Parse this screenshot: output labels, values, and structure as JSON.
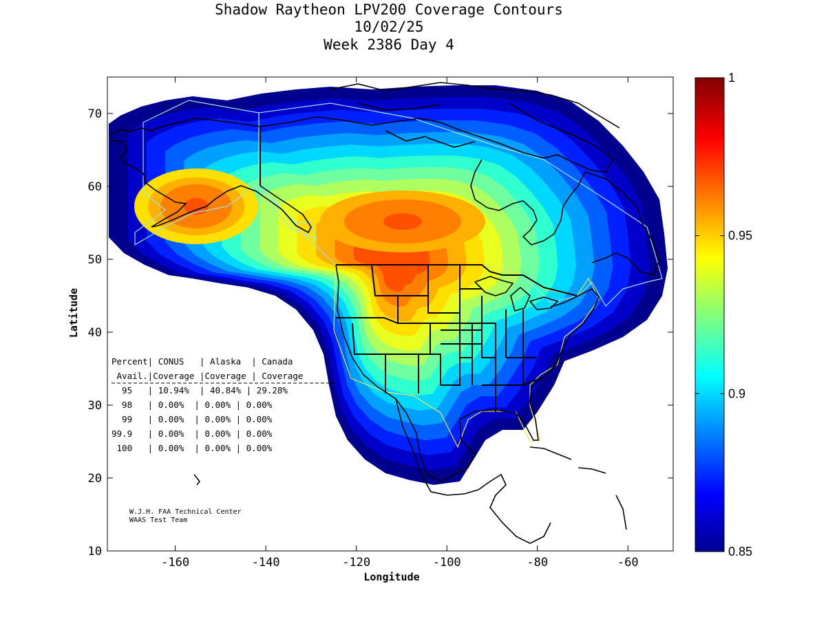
{
  "title": {
    "line1": "Shadow Raytheon LPV200 Coverage Contours",
    "line2": "10/02/25",
    "line3": "Week 2386 Day 4"
  },
  "axes": {
    "xlabel": "Longitude",
    "ylabel": "Latitude",
    "xlim": [
      -175,
      -50
    ],
    "ylim": [
      10,
      75
    ],
    "xticks": [
      -160,
      -140,
      -120,
      -100,
      -80,
      -60
    ],
    "yticks": [
      10,
      20,
      30,
      40,
      50,
      60,
      70
    ]
  },
  "colorbar": {
    "range": [
      0.85,
      1
    ],
    "ticks": [
      "1",
      "0.95",
      "0.9",
      "0.85"
    ],
    "tick_values": [
      1,
      0.95,
      0.9,
      0.85
    ]
  },
  "table": {
    "header1": "Percent| CONUS   | Alaska  | Canada",
    "header2": " Avail.|Coverage |Coverage | Coverage",
    "divider": "----------------------------------------",
    "rows": [
      "  95   | 10.94%  | 40.84% | 29.28%",
      "  98   | 0.00%  | 0.00% | 0.00%",
      "  99   | 0.00%  | 0.00% | 0.00%",
      "99.9   | 0.00%  | 0.00% | 0.00%",
      " 100   | 0.00%  | 0.00% | 0.00%"
    ]
  },
  "credit": {
    "line1": "W.J.H. FAA Technical Center",
    "line2": "WAAS Test Team"
  },
  "chart_data": {
    "type": "heatmap",
    "title": "Shadow Raytheon LPV200 Coverage Contours",
    "xlabel": "Longitude",
    "ylabel": "Latitude",
    "xlim": [
      -175,
      -50
    ],
    "ylim": [
      10,
      75
    ],
    "value_range": [
      0.85,
      1
    ],
    "colormap": "jet",
    "coverage_table": {
      "columns": [
        "Percent Avail.",
        "CONUS Coverage",
        "Alaska Coverage",
        "Canada Coverage"
      ],
      "rows": [
        [
          "95",
          "10.94%",
          "40.84%",
          "29.28%"
        ],
        [
          "98",
          "0.00%",
          "0.00%",
          "0.00%"
        ],
        [
          "99",
          "0.00%",
          "0.00%",
          "0.00%"
        ],
        [
          "99.9",
          "0.00%",
          "0.00%",
          "0.00%"
        ],
        [
          "100",
          "0.00%",
          "0.00%",
          "0.00%"
        ]
      ]
    }
  }
}
